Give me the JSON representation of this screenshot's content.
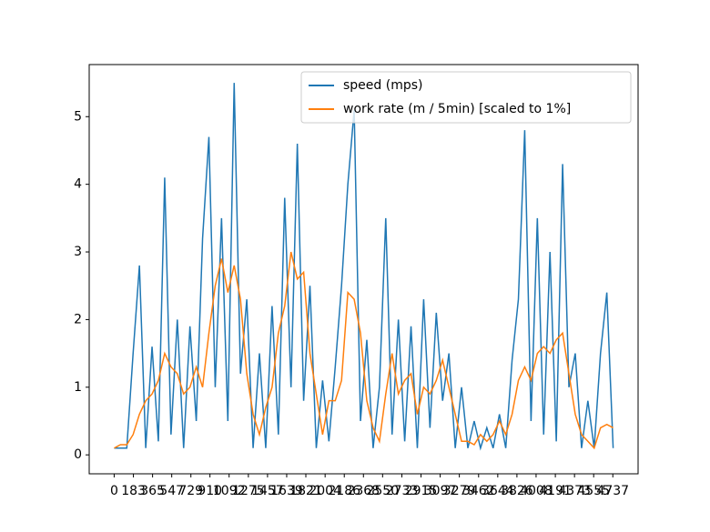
{
  "chart_data": {
    "type": "line",
    "x": [
      0,
      60,
      120,
      180,
      240,
      300,
      360,
      420,
      480,
      540,
      600,
      660,
      720,
      780,
      840,
      900,
      960,
      1020,
      1080,
      1140,
      1200,
      1260,
      1320,
      1380,
      1440,
      1500,
      1560,
      1620,
      1680,
      1740,
      1800,
      1860,
      1920,
      1980,
      2040,
      2100,
      2160,
      2220,
      2280,
      2340,
      2400,
      2460,
      2520,
      2580,
      2640,
      2700,
      2760,
      2820,
      2880,
      2940,
      3000,
      3060,
      3120,
      3180,
      3240,
      3300,
      3360,
      3420,
      3480,
      3540,
      3600,
      3660,
      3720,
      3780,
      3840,
      3900,
      3960,
      4020,
      4080,
      4140,
      4200,
      4260,
      4320,
      4380,
      4440,
      4500,
      4560,
      4620,
      4680,
      4740
    ],
    "series": [
      {
        "name": "speed (mps)",
        "color": "#1f77b4",
        "values": [
          0.1,
          0.1,
          0.1,
          1.5,
          2.8,
          0.1,
          1.6,
          0.2,
          4.1,
          0.3,
          2.0,
          0.1,
          1.9,
          0.5,
          3.2,
          4.7,
          1.0,
          3.5,
          0.5,
          5.5,
          1.2,
          2.3,
          0.1,
          1.5,
          0.1,
          2.2,
          0.3,
          3.8,
          1.0,
          4.6,
          0.8,
          2.5,
          0.1,
          1.1,
          0.2,
          1.3,
          2.5,
          4.0,
          5.1,
          0.5,
          1.7,
          0.1,
          1.0,
          3.5,
          0.3,
          2.0,
          0.2,
          1.9,
          0.1,
          2.3,
          0.4,
          2.1,
          0.8,
          1.5,
          0.1,
          1.0,
          0.1,
          0.5,
          0.1,
          0.4,
          0.1,
          0.6,
          0.1,
          1.4,
          2.3,
          4.8,
          0.5,
          3.5,
          0.3,
          3.0,
          0.2,
          4.3,
          1.0,
          1.5,
          0.1,
          0.8,
          0.1,
          1.5,
          2.4,
          0.1
        ]
      },
      {
        "name": "work rate (m / 5min) [scaled to 1%]",
        "color": "#ff7f0e",
        "values": [
          0.1,
          0.15,
          0.15,
          0.3,
          0.6,
          0.8,
          0.9,
          1.1,
          1.5,
          1.3,
          1.2,
          0.9,
          1.0,
          1.3,
          1.0,
          1.8,
          2.5,
          2.9,
          2.4,
          2.8,
          2.3,
          1.2,
          0.6,
          0.3,
          0.7,
          1.0,
          1.8,
          2.2,
          3.0,
          2.6,
          2.7,
          1.5,
          0.9,
          0.3,
          0.8,
          0.8,
          1.1,
          2.4,
          2.3,
          1.8,
          0.8,
          0.4,
          0.2,
          0.9,
          1.5,
          0.9,
          1.1,
          1.2,
          0.6,
          1.0,
          0.9,
          1.1,
          1.4,
          1.0,
          0.6,
          0.2,
          0.2,
          0.15,
          0.3,
          0.2,
          0.3,
          0.5,
          0.3,
          0.6,
          1.1,
          1.3,
          1.1,
          1.5,
          1.6,
          1.5,
          1.7,
          1.8,
          1.2,
          0.6,
          0.3,
          0.2,
          0.1,
          0.4,
          0.45,
          0.4
        ]
      }
    ],
    "xlim": [
      -237,
      4977
    ],
    "xticks": [
      0,
      183,
      365,
      547,
      729,
      910,
      1092,
      1275,
      1457,
      1639,
      1821,
      2004,
      2186,
      2368,
      2550,
      2733,
      2915,
      3097,
      3279,
      3462,
      3644,
      3826,
      4008,
      4191,
      4373,
      4555,
      4737
    ],
    "ylim": [
      -0.28,
      5.77
    ],
    "yticks": [
      0,
      1,
      2,
      3,
      4,
      5
    ],
    "legend": "upper right"
  }
}
